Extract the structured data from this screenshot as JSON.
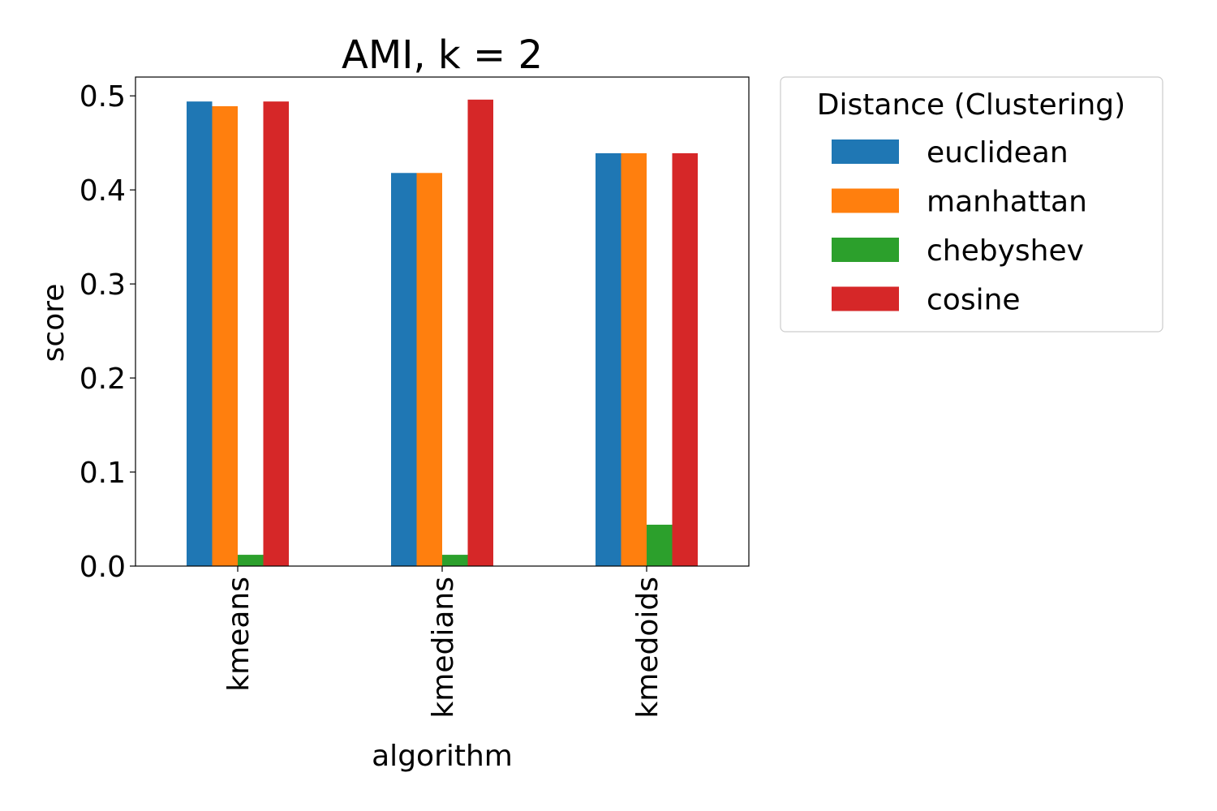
{
  "chart_data": {
    "type": "bar",
    "title": "AMI, k = 2",
    "xlabel": "algorithm",
    "ylabel": "score",
    "categories": [
      "kmeans",
      "kmedians",
      "kmedoids"
    ],
    "ylim": [
      0,
      0.52
    ],
    "yticks": [
      "0.0",
      "0.1",
      "0.2",
      "0.3",
      "0.4",
      "0.5"
    ],
    "grid": false,
    "legend": {
      "title": "Distance (Clustering)",
      "placement": "outside-right-top"
    },
    "series": [
      {
        "name": "euclidean",
        "color": "#1f77b4",
        "values": [
          0.494,
          0.418,
          0.439
        ]
      },
      {
        "name": "manhattan",
        "color": "#ff7f0e",
        "values": [
          0.489,
          0.418,
          0.439
        ]
      },
      {
        "name": "chebyshev",
        "color": "#2ca02c",
        "values": [
          0.012,
          0.012,
          0.044
        ]
      },
      {
        "name": "cosine",
        "color": "#d62728",
        "values": [
          0.494,
          0.496,
          0.439
        ]
      }
    ]
  }
}
